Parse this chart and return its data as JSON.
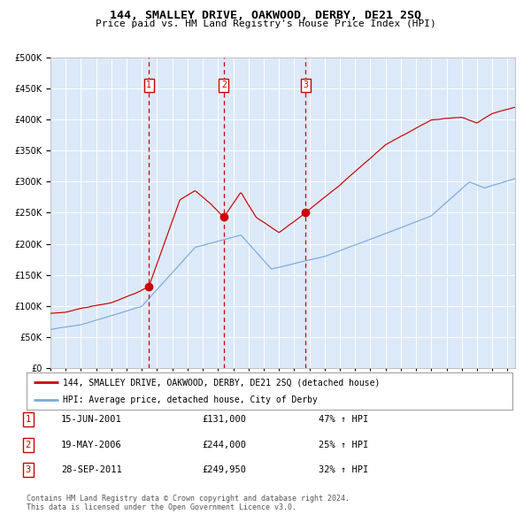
{
  "title": "144, SMALLEY DRIVE, OAKWOOD, DERBY, DE21 2SQ",
  "subtitle": "Price paid vs. HM Land Registry's House Price Index (HPI)",
  "legend_line1": "144, SMALLEY DRIVE, OAKWOOD, DERBY, DE21 2SQ (detached house)",
  "legend_line2": "HPI: Average price, detached house, City of Derby",
  "sale_label_texts": [
    "15-JUN-2001",
    "19-MAY-2006",
    "28-SEP-2011"
  ],
  "sale_price_texts": [
    "£131,000",
    "£244,000",
    "£249,950"
  ],
  "sale_hpi_texts": [
    "47% ↑ HPI",
    "25% ↑ HPI",
    "32% ↑ HPI"
  ],
  "sale_labels": [
    "1",
    "2",
    "3"
  ],
  "vline_x": [
    2001.458,
    2006.375,
    2011.745
  ],
  "sale_prices": [
    131000,
    244000,
    249950
  ],
  "ylim": [
    0,
    500000
  ],
  "xlim_start": 1995,
  "xlim_end": 2025.5,
  "background_color": "#dce9f8",
  "grid_color": "#ffffff",
  "red_line_color": "#cc0000",
  "blue_line_color": "#7aaadd",
  "vline_color": "#cc0000",
  "footnote1": "Contains HM Land Registry data © Crown copyright and database right 2024.",
  "footnote2": "This data is licensed under the Open Government Licence v3.0.",
  "title_fontsize": 9.5,
  "subtitle_fontsize": 8,
  "legend_fontsize": 7,
  "table_fontsize": 7.5,
  "footnote_fontsize": 6,
  "ytick_fontsize": 7,
  "xtick_fontsize": 6
}
